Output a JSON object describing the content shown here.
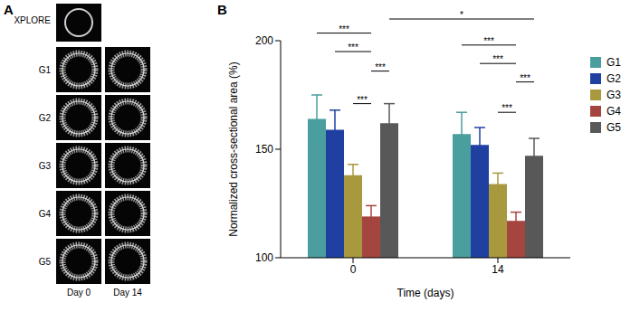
{
  "panel_labels": [
    "A",
    "B"
  ],
  "images": {
    "reference": "XPLORE",
    "rows": [
      "G1",
      "G2",
      "G3",
      "G4",
      "G5"
    ],
    "columns": [
      "Day 0",
      "Day 14"
    ]
  },
  "chart_data": {
    "type": "bar",
    "x_label": "Time (days)",
    "y_label": "Normalized cross-sectional area (%)",
    "categories": [
      "0",
      "14"
    ],
    "series": [
      {
        "name": "G1",
        "color": "#4a9e9e",
        "values": [
          164,
          157
        ],
        "errors": [
          11,
          10
        ]
      },
      {
        "name": "G2",
        "color": "#1f40a0",
        "values": [
          159,
          152
        ],
        "errors": [
          9,
          8
        ]
      },
      {
        "name": "G3",
        "color": "#a8993e",
        "values": [
          138,
          134
        ],
        "errors": [
          5,
          5
        ]
      },
      {
        "name": "G4",
        "color": "#a5453f",
        "values": [
          119,
          117
        ],
        "errors": [
          5,
          4
        ]
      },
      {
        "name": "G5",
        "color": "#585858",
        "values": [
          162,
          147
        ],
        "errors": [
          9,
          8
        ]
      }
    ],
    "ylim": [
      100,
      200
    ],
    "yticks": [
      100,
      150,
      200
    ],
    "grid": false,
    "legend": "right",
    "annotations": [
      {
        "text": "***",
        "from": {
          "category": "0",
          "series": "G1"
        },
        "to": {
          "category": "0",
          "series": "G4"
        }
      },
      {
        "text": "***",
        "from": {
          "category": "0",
          "series": "G2"
        },
        "to": {
          "category": "0",
          "series": "G4"
        }
      },
      {
        "text": "***",
        "from": {
          "category": "0",
          "series": "G4"
        },
        "to": {
          "category": "0",
          "series": "G5"
        }
      },
      {
        "text": "***",
        "from": {
          "category": "0",
          "series": "G3"
        },
        "to": {
          "category": "0",
          "series": "G4"
        }
      },
      {
        "text": "***",
        "from": {
          "category": "14",
          "series": "G1"
        },
        "to": {
          "category": "14",
          "series": "G4"
        }
      },
      {
        "text": "***",
        "from": {
          "category": "14",
          "series": "G2"
        },
        "to": {
          "category": "14",
          "series": "G4"
        }
      },
      {
        "text": "***",
        "from": {
          "category": "14",
          "series": "G4"
        },
        "to": {
          "category": "14",
          "series": "G5"
        }
      },
      {
        "text": "***",
        "from": {
          "category": "14",
          "series": "G3"
        },
        "to": {
          "category": "14",
          "series": "G4"
        }
      },
      {
        "text": "*",
        "from": {
          "category": "0",
          "series": "G5"
        },
        "to": {
          "category": "14",
          "series": "G5"
        }
      }
    ]
  }
}
